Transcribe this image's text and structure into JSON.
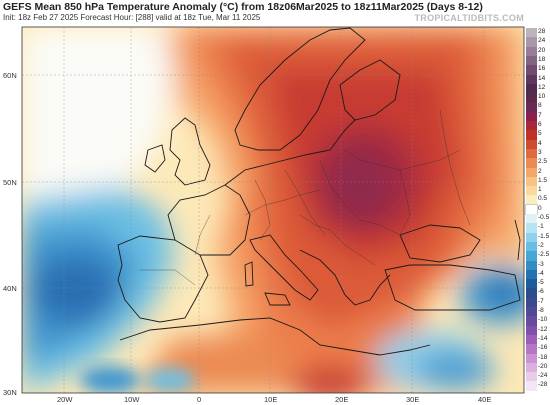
{
  "header": {
    "title": "GEFS Mean 850 hPa Temperature Anomaly (°C) from 18z06Mar2025 to 18z11Mar2025 (Days 8-12)",
    "subtitle": "Init: 18z Feb 27 2025   Forecast Hour: [288]   valid at 18z Tue, Mar 11 2025",
    "brand": "TROPICALTIDBITS.COM"
  },
  "map": {
    "lat_labels": [
      "60N",
      "50N",
      "40N",
      "30N"
    ],
    "lon_labels": [
      "20W",
      "10W",
      "0",
      "10E",
      "20E",
      "30E",
      "40E"
    ],
    "anomaly_max": "up to +7 °C over central/eastern Europe",
    "anomaly_min": "down to -4 °C over the Atlantic west of Iberia and over eastern Turkey"
  },
  "legend": {
    "values": [
      "28",
      "24",
      "20",
      "18",
      "16",
      "14",
      "12",
      "10",
      "8",
      "7",
      "6",
      "5",
      "4",
      "3",
      "2.5",
      "2",
      "1.5",
      "1",
      "0.5",
      "0",
      "-0.5",
      "-1",
      "-1.5",
      "-2",
      "-2.5",
      "-3",
      "-4",
      "-5",
      "-6",
      "-7",
      "-8",
      "-10",
      "-12",
      "-14",
      "-16",
      "-18",
      "-20",
      "-24",
      "-28"
    ],
    "colors": [
      "#bdb3bd",
      "#a997a9",
      "#967c96",
      "#836383",
      "#714b71",
      "#5f365f",
      "#4f2c4f",
      "#5a2a4a",
      "#6a2a55",
      "#8a2050",
      "#a8283a",
      "#c03028",
      "#d04a30",
      "#e06a40",
      "#ec8a52",
      "#f3a868",
      "#f7c282",
      "#fad99c",
      "#fcecbf",
      "#ffffff",
      "#dff2f5",
      "#b8e3f0",
      "#8fd0ea",
      "#67bde3",
      "#46a6d6",
      "#328dc5",
      "#2372b1",
      "#1f5c9c",
      "#2a4d8c",
      "#3a4a8a",
      "#4e4a94",
      "#664ba0",
      "#8050ab",
      "#9b5fb8",
      "#b676c6",
      "#cc92d4",
      "#dcb1e0",
      "#e8cdeb",
      "#f2e5f4"
    ]
  },
  "colors": {
    "warm_core": "#b02d40",
    "cold_core": "#2372b1",
    "neutral": "#ffffff"
  }
}
